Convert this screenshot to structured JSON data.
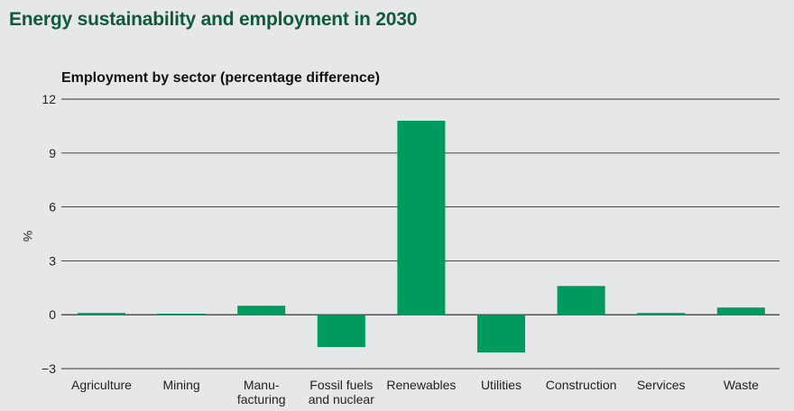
{
  "page": {
    "title": "Energy sustainability and employment in 2030"
  },
  "colors": {
    "bar": "#009a5e",
    "title": "#0f5a3b",
    "background": "#e6e7e8"
  },
  "chart_data": {
    "type": "bar",
    "title": "Employment by sector (percentage difference)",
    "ylabel": "%",
    "xlabel": "",
    "ylim": [
      -3,
      12
    ],
    "yticks": [
      -3,
      0,
      3,
      6,
      9,
      12
    ],
    "ytick_labels": [
      "−3",
      "0",
      "3",
      "6",
      "9",
      "12"
    ],
    "grid": true,
    "categories": [
      [
        "Agriculture"
      ],
      [
        "Mining"
      ],
      [
        "Manu-",
        "facturing"
      ],
      [
        "Fossil fuels",
        "and nuclear"
      ],
      [
        "Renewables"
      ],
      [
        "Utilities"
      ],
      [
        "Construction"
      ],
      [
        "Services"
      ],
      [
        "Waste"
      ]
    ],
    "values": [
      0.1,
      0.0,
      0.5,
      -1.8,
      10.8,
      -2.1,
      1.6,
      0.1,
      0.4
    ]
  }
}
